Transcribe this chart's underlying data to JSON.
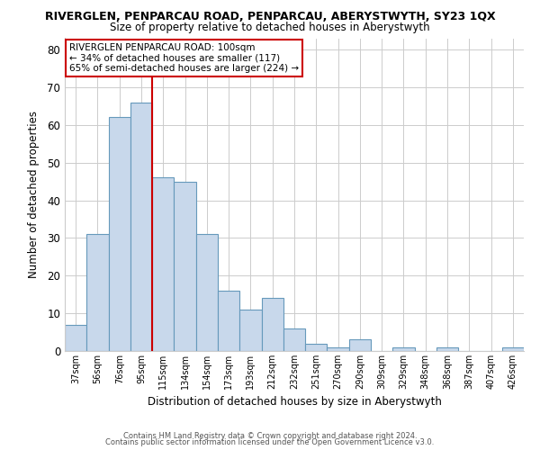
{
  "title": "RIVERGLEN, PENPARCAU ROAD, PENPARCAU, ABERYSTWYTH, SY23 1QX",
  "subtitle": "Size of property relative to detached houses in Aberystwyth",
  "xlabel": "Distribution of detached houses by size in Aberystwyth",
  "ylabel": "Number of detached properties",
  "bar_color": "#c8d8eb",
  "bar_edge_color": "#6699bb",
  "categories": [
    "37sqm",
    "56sqm",
    "76sqm",
    "95sqm",
    "115sqm",
    "134sqm",
    "154sqm",
    "173sqm",
    "193sqm",
    "212sqm",
    "232sqm",
    "251sqm",
    "270sqm",
    "290sqm",
    "309sqm",
    "329sqm",
    "348sqm",
    "368sqm",
    "387sqm",
    "407sqm",
    "426sqm"
  ],
  "values": [
    7,
    31,
    62,
    66,
    46,
    45,
    31,
    16,
    11,
    14,
    6,
    2,
    1,
    3,
    0,
    1,
    0,
    1,
    0,
    0,
    1
  ],
  "ylim": [
    0,
    83
  ],
  "yticks": [
    0,
    10,
    20,
    30,
    40,
    50,
    60,
    70,
    80
  ],
  "vline_x": 3.5,
  "vline_color": "#cc0000",
  "annotation_line1": "RIVERGLEN PENPARCAU ROAD: 100sqm",
  "annotation_line2": "← 34% of detached houses are smaller (117)",
  "annotation_line3": "65% of semi-detached houses are larger (224) →",
  "footer1": "Contains HM Land Registry data © Crown copyright and database right 2024.",
  "footer2": "Contains public sector information licensed under the Open Government Licence v3.0.",
  "background_color": "#ffffff",
  "plot_background": "#ffffff",
  "grid_color": "#cccccc"
}
